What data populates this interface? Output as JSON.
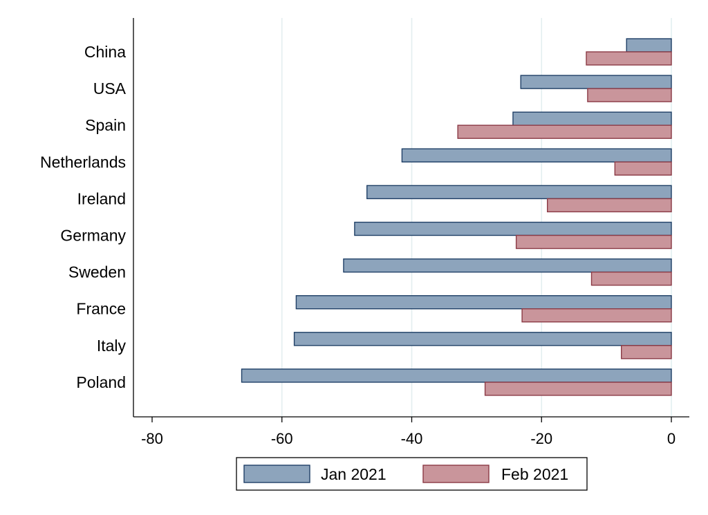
{
  "chart_data": {
    "type": "bar",
    "orientation": "horizontal",
    "title": "",
    "xlabel": "",
    "ylabel": "",
    "categories": [
      "China",
      "USA",
      "Spain",
      "Netherlands",
      "Ireland",
      "Germany",
      "Sweden",
      "France",
      "Italy",
      "Poland"
    ],
    "series": [
      {
        "name": "Jan 2021",
        "color": "#8da4bc",
        "edge_color": "#1f3f66",
        "values": [
          -6.9,
          -23.2,
          -24.4,
          -41.5,
          -46.9,
          -48.8,
          -50.5,
          -57.8,
          -58.1,
          -66.2
        ]
      },
      {
        "name": "Feb 2021",
        "color": "#c9959b",
        "edge_color": "#8b3a45",
        "values": [
          -13.1,
          -12.9,
          -32.9,
          -8.7,
          -19.1,
          -23.9,
          -12.3,
          -23.0,
          -7.7,
          -28.7
        ]
      }
    ],
    "xlim": [
      -80,
      0
    ],
    "xticks": [
      -80,
      -60,
      -40,
      -20,
      0
    ],
    "xtick_labels": [
      "-80",
      "-60",
      "-40",
      "-20",
      "0"
    ],
    "grid": true,
    "legend_position": "bottom"
  }
}
